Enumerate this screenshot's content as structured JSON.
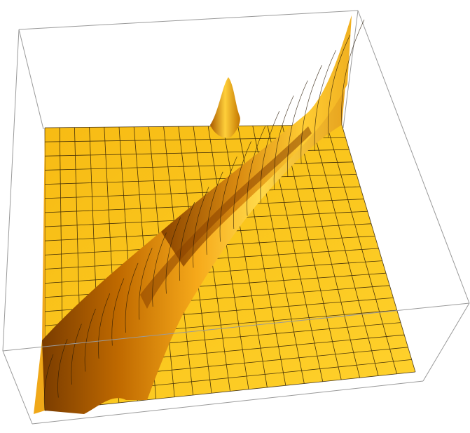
{
  "plot": {
    "kind": "3d-surface",
    "boxed": true,
    "mesh": true,
    "surface_colors": {
      "base": "#f9c41b",
      "highlight": "#ffde55",
      "shadow": "#a85600",
      "deep_shadow": "#6d3400",
      "mesh_line": "#2a1a05",
      "box_line": "#9a9a9a"
    }
  }
}
